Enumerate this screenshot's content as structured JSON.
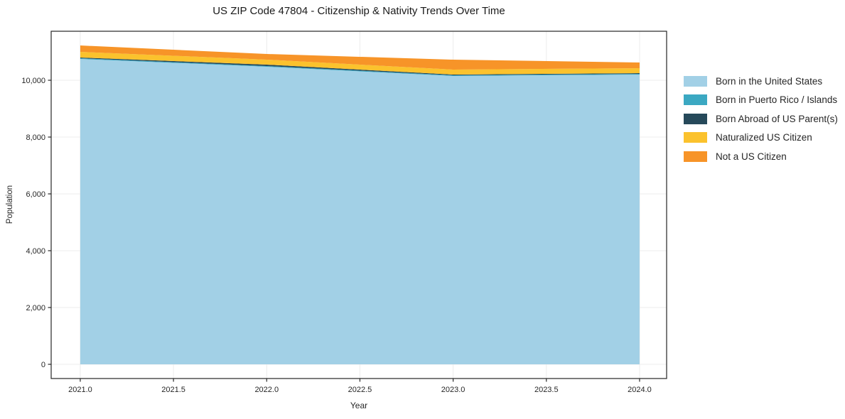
{
  "title": "US ZIP Code 47804 - Citizenship & Nativity Trends Over Time",
  "chart_data": {
    "type": "area",
    "stacked": true,
    "title": "US ZIP Code 47804 - Citizenship & Nativity Trends Over Time",
    "xlabel": "Year",
    "ylabel": "Population",
    "x": [
      2021,
      2022,
      2023,
      2024
    ],
    "series": [
      {
        "name": "Born in the United States",
        "color": "#a2d0e6",
        "values": [
          10750,
          10475,
          10150,
          10200
        ]
      },
      {
        "name": "Born in Puerto Rico / Islands",
        "color": "#3ba8c2",
        "values": [
          25,
          25,
          25,
          25
        ]
      },
      {
        "name": "Born Abroad of US Parent(s)",
        "color": "#26495a",
        "values": [
          25,
          50,
          25,
          25
        ]
      },
      {
        "name": "Naturalized US Citizen",
        "color": "#fbc22d",
        "values": [
          200,
          175,
          175,
          175
        ]
      },
      {
        "name": "Not a US Citizen",
        "color": "#f79428",
        "values": [
          225,
          200,
          350,
          200
        ]
      }
    ],
    "totals": [
      11225,
      10925,
      10725,
      10625
    ],
    "xlim": [
      2020.844,
      2024.145
    ],
    "ylim": [
      -500,
      11725
    ],
    "x_ticks": {
      "values": [
        2021.0,
        2021.5,
        2022.0,
        2022.5,
        2023.0,
        2023.5,
        2024.0
      ],
      "labels": [
        "2021.0",
        "2021.5",
        "2022.0",
        "2022.5",
        "2023.0",
        "2023.5",
        "2024.0"
      ]
    },
    "y_ticks": {
      "values": [
        0,
        2000,
        4000,
        6000,
        8000,
        10000
      ],
      "labels": [
        "0",
        "2,000",
        "4,000",
        "6,000",
        "8,000",
        "10,000"
      ]
    },
    "grid": true,
    "legend_position": "right-outside",
    "colors": {
      "spine": "#262626",
      "grid": "#ececec",
      "tick_text": "#262626",
      "background": "#ffffff"
    }
  }
}
